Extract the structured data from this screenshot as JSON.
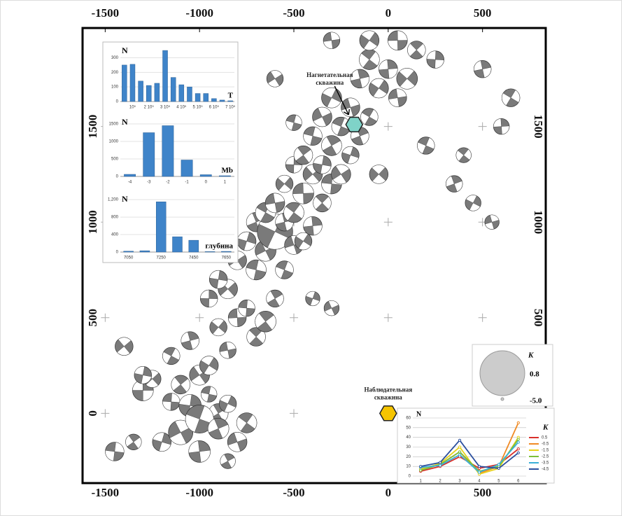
{
  "chart_data": [
    {
      "type": "scatter",
      "xlim": [
        -1620,
        835
      ],
      "ylim": [
        -365,
        2015
      ],
      "xticks": [
        -1500,
        -1000,
        -500,
        0,
        500
      ],
      "yticks": [
        0,
        500,
        1000,
        1500
      ],
      "x": [
        -1300,
        -1250,
        -1150,
        -1100,
        -1050,
        -1000,
        -950,
        -900,
        -1200,
        -1100,
        -1000,
        -900,
        -850,
        -800,
        -1150,
        -1050,
        -950,
        -850,
        -750,
        -1000,
        -900,
        -800,
        -700,
        -950,
        -850,
        -750,
        -650,
        -900,
        -800,
        -700,
        -600,
        -750,
        -650,
        -550,
        -700,
        -600,
        -500,
        -650,
        -550,
        -450,
        -600,
        -500,
        -400,
        -550,
        -450,
        -350,
        -500,
        -400,
        -300,
        -450,
        -350,
        -250,
        -400,
        -300,
        -200,
        -350,
        -250,
        -150,
        -300,
        -200,
        -100,
        -150,
        -50,
        50,
        -100,
        0,
        100,
        50,
        150,
        250,
        -1400,
        -1450,
        -1350,
        -1300,
        -600,
        -500,
        -850,
        -400,
        -300,
        200,
        350,
        450,
        550,
        650,
        500,
        -100,
        -300,
        400,
        600,
        -50
      ],
      "y": [
        120,
        180,
        60,
        150,
        40,
        200,
        100,
        0,
        -150,
        -100,
        -30,
        -80,
        50,
        -150,
        300,
        380,
        250,
        330,
        -50,
        -200,
        450,
        500,
        400,
        600,
        650,
        550,
        480,
        700,
        800,
        750,
        600,
        900,
        850,
        750,
        1000,
        950,
        880,
        1050,
        1000,
        900,
        1100,
        1050,
        980,
        1200,
        1150,
        1100,
        1300,
        1250,
        1200,
        1350,
        1300,
        1250,
        1450,
        1400,
        1350,
        1550,
        1500,
        1450,
        1650,
        1600,
        1550,
        1750,
        1700,
        1650,
        1850,
        1800,
        1750,
        1950,
        1900,
        1850,
        350,
        -200,
        -150,
        200,
        1750,
        1520,
        -250,
        600,
        550,
        1400,
        1200,
        1100,
        1000,
        1650,
        1800,
        1950,
        1950,
        1350,
        1500,
        1250
      ],
      "k": [
        -2.5,
        -3,
        -3,
        -2.8,
        -2.3,
        -2.6,
        -3.2,
        -2.7,
        -2.8,
        -2,
        -1.5,
        -2.5,
        -3,
        -2.7,
        -3,
        -2.9,
        -2.8,
        -3.1,
        -2.6,
        -2.4,
        -3,
        -2.9,
        -2.8,
        -3,
        -2.7,
        -3.1,
        -2.5,
        -2.9,
        -2.8,
        -2.6,
        -3,
        -2.8,
        -2.5,
        -2.9,
        -2.7,
        -0.5,
        -2.8,
        -2.6,
        -2.9,
        -3,
        -2.7,
        -2.6,
        -2.8,
        -3,
        -2.5,
        -2.9,
        -3.1,
        -2.7,
        -2.6,
        -2.8,
        -2.9,
        -2.7,
        -2.8,
        -2.6,
        -3,
        -2.7,
        -2.8,
        -2.9,
        -2.6,
        -2.8,
        -3,
        -2.8,
        -2.7,
        -2.9,
        -2.6,
        -2.8,
        -2.5,
        -2.7,
        -2.9,
        -3,
        -2.9,
        -2.8,
        -3.2,
        -3,
        -3.1,
        -3.2,
        -3.3,
        -3.4,
        -3.3,
        -3,
        -3.1,
        -3.2,
        -3.4,
        -2.9,
        -3,
        -2.7,
        -3.1,
        -3.3,
        -3.2,
        -2.8
      ],
      "wells": [
        {
          "label": [
            "Нагнетательная",
            "скважина"
          ],
          "x": -180,
          "y": 1510,
          "color": "#7fd3c8"
        },
        {
          "label": [
            "Наблюдательная",
            "скважина"
          ],
          "x": 0,
          "y": 0,
          "color": "#f5c400"
        }
      ],
      "size_legend": {
        "title": "K",
        "values": [
          0.8,
          -5
        ],
        "value_labels": [
          "0.8",
          "-5.0"
        ]
      }
    },
    {
      "type": "bar",
      "y_label": "N",
      "x_label": "T",
      "categories": [
        null,
        "10⁵",
        null,
        "2 10⁵",
        null,
        "3 10⁵",
        null,
        "4 10⁵",
        null,
        "5 10⁵",
        null,
        "6 10⁵",
        null,
        "7 10⁵"
      ],
      "values": [
        250,
        255,
        140,
        110,
        125,
        350,
        165,
        115,
        100,
        55,
        55,
        20,
        10,
        5
      ],
      "ylim": [
        0,
        360
      ],
      "yticks": [
        0,
        100,
        200,
        300
      ],
      "color": "#3f84c9"
    },
    {
      "type": "bar",
      "y_label": "N",
      "x_label": "Mb",
      "categories": [
        "-4",
        "-3",
        "-2",
        "-1",
        "0",
        "1"
      ],
      "values": [
        60,
        1250,
        1450,
        470,
        50,
        20
      ],
      "ylim": [
        0,
        1600
      ],
      "yticks": [
        0,
        500,
        1000,
        1500
      ],
      "color": "#3f84c9"
    },
    {
      "type": "bar",
      "y_label": "N",
      "x_label": "глубина",
      "categories": [
        "7050",
        null,
        "7250",
        null,
        "7450",
        null,
        "7650"
      ],
      "values": [
        20,
        30,
        1150,
        350,
        270,
        10,
        15
      ],
      "ylim": [
        0,
        1250
      ],
      "yticks": [
        0,
        400,
        800,
        {
          "value": 1200,
          "label": "1,200"
        }
      ],
      "color": "#3f84c9"
    },
    {
      "type": "line",
      "y_label": "N",
      "legend_title": "K",
      "x": [
        1,
        2,
        3,
        4,
        5,
        6
      ],
      "xlim": [
        0.6,
        6.4
      ],
      "xticks": [
        1,
        2,
        3,
        4,
        5,
        6
      ],
      "ylim": [
        0,
        60
      ],
      "yticks": [
        0,
        10,
        20,
        30,
        40,
        50,
        60
      ],
      "grid": true,
      "series": [
        {
          "name": "0.5",
          "color": "#d9302b",
          "values": [
            5,
            10,
            20,
            8,
            12,
            28
          ]
        },
        {
          "name": "-0.5",
          "color": "#f08a24",
          "values": [
            8,
            12,
            25,
            3,
            10,
            55
          ]
        },
        {
          "name": "-1.5",
          "color": "#e8d21c",
          "values": [
            7,
            13,
            30,
            2,
            8,
            40
          ]
        },
        {
          "name": "-2.5",
          "color": "#7cbf3a",
          "values": [
            6,
            12,
            25,
            5,
            10,
            38
          ]
        },
        {
          "name": "-3.5",
          "color": "#3ab0d8",
          "values": [
            9,
            11,
            22,
            4,
            12,
            35
          ]
        },
        {
          "name": "-4.5",
          "color": "#2b4f9e",
          "values": [
            10,
            14,
            37,
            10,
            8,
            24
          ]
        }
      ]
    }
  ]
}
